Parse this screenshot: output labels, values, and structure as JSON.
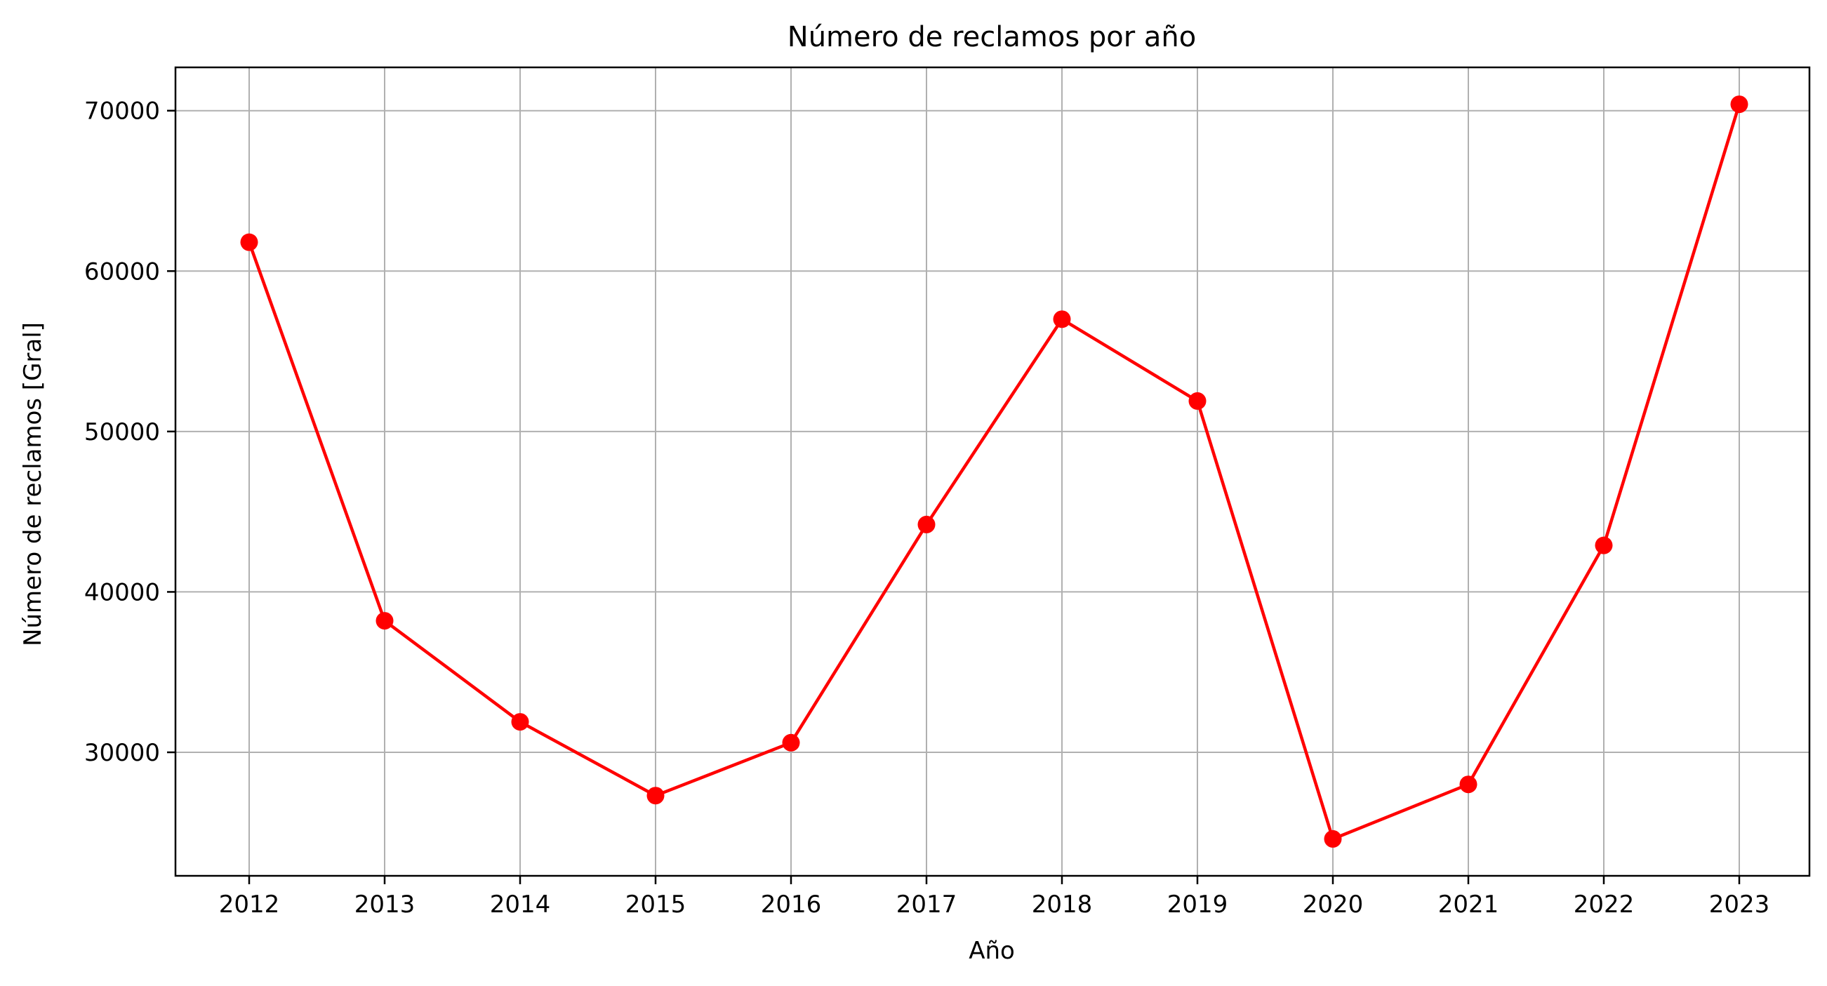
{
  "chart_data": {
    "type": "line",
    "title": "Número de reclamos por año",
    "xlabel": "Año",
    "ylabel": "Número de reclamos [Gral]",
    "x": [
      "2012",
      "2013",
      "2014",
      "2015",
      "2016",
      "2017",
      "2018",
      "2019",
      "2020",
      "2021",
      "2022",
      "2023"
    ],
    "series": [
      {
        "values": [
          61800,
          38200,
          31900,
          27300,
          30600,
          44200,
          57000,
          51900,
          24600,
          28000,
          42900,
          70400
        ],
        "color": "#ff0000",
        "marker": "circle"
      }
    ],
    "ylim": [
      22300,
      72700
    ],
    "yticks": [
      30000,
      40000,
      50000,
      60000,
      70000
    ],
    "grid": true,
    "legend": "none"
  }
}
